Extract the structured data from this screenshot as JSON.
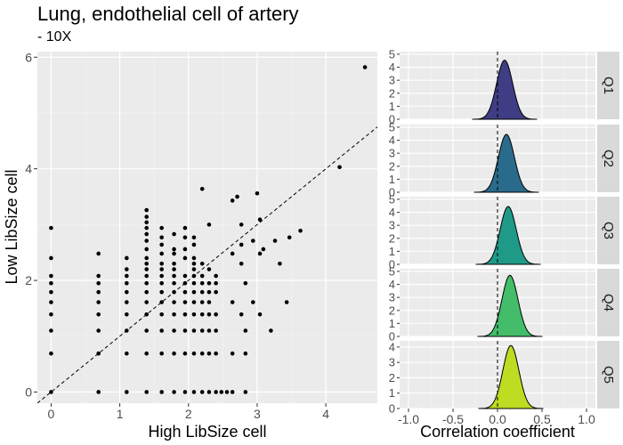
{
  "chart_data": [
    {
      "type": "scatter",
      "title": "Lung, endothelial cell of artery",
      "subtitle": "- 10X",
      "xlabel": "High LibSize cell",
      "ylabel": "Low LibSize cell",
      "xlim": [
        -0.2,
        4.75
      ],
      "ylim": [
        -0.2,
        6.1
      ],
      "xticks": [
        0,
        1,
        2,
        3,
        4
      ],
      "yticks": [
        0,
        2,
        4,
        6
      ],
      "grid": true,
      "reference_line": {
        "slope": 1,
        "intercept": 0,
        "style": "dashed"
      },
      "points": [
        [
          0,
          0
        ],
        [
          0,
          0.69
        ],
        [
          0,
          1.1
        ],
        [
          0,
          1.39
        ],
        [
          0,
          1.61
        ],
        [
          0,
          1.79
        ],
        [
          0,
          1.95
        ],
        [
          0,
          2.08
        ],
        [
          0,
          2.4
        ],
        [
          0,
          2.94
        ],
        [
          0.69,
          0
        ],
        [
          0.69,
          0.69
        ],
        [
          0.69,
          1.1
        ],
        [
          0.69,
          1.39
        ],
        [
          0.69,
          1.61
        ],
        [
          0.69,
          1.79
        ],
        [
          0.69,
          1.95
        ],
        [
          0.69,
          2.08
        ],
        [
          0.69,
          2.48
        ],
        [
          1.1,
          0
        ],
        [
          1.1,
          0.69
        ],
        [
          1.1,
          1.1
        ],
        [
          1.1,
          1.39
        ],
        [
          1.1,
          1.61
        ],
        [
          1.1,
          1.79
        ],
        [
          1.1,
          1.95
        ],
        [
          1.1,
          2.08
        ],
        [
          1.1,
          2.2
        ],
        [
          1.1,
          2.4
        ],
        [
          1.39,
          0
        ],
        [
          1.39,
          0.69
        ],
        [
          1.39,
          1.1
        ],
        [
          1.39,
          1.39
        ],
        [
          1.39,
          1.61
        ],
        [
          1.39,
          1.79
        ],
        [
          1.39,
          1.95
        ],
        [
          1.39,
          2.08
        ],
        [
          1.39,
          2.2
        ],
        [
          1.39,
          2.3
        ],
        [
          1.39,
          2.4
        ],
        [
          1.39,
          2.56
        ],
        [
          1.39,
          2.71
        ],
        [
          1.39,
          2.83
        ],
        [
          1.39,
          2.94
        ],
        [
          1.39,
          3.04
        ],
        [
          1.39,
          3.14
        ],
        [
          1.39,
          3.26
        ],
        [
          1.61,
          0
        ],
        [
          1.61,
          0.69
        ],
        [
          1.61,
          1.1
        ],
        [
          1.61,
          1.39
        ],
        [
          1.61,
          1.61
        ],
        [
          1.61,
          1.79
        ],
        [
          1.61,
          1.95
        ],
        [
          1.61,
          2.08
        ],
        [
          1.61,
          2.2
        ],
        [
          1.61,
          2.3
        ],
        [
          1.61,
          2.48
        ],
        [
          1.61,
          2.64
        ],
        [
          1.61,
          2.77
        ],
        [
          1.61,
          2.94
        ],
        [
          1.79,
          0
        ],
        [
          1.79,
          0.69
        ],
        [
          1.79,
          1.1
        ],
        [
          1.79,
          1.39
        ],
        [
          1.79,
          1.61
        ],
        [
          1.79,
          1.79
        ],
        [
          1.79,
          1.95
        ],
        [
          1.79,
          2.08
        ],
        [
          1.79,
          2.2
        ],
        [
          1.79,
          2.3
        ],
        [
          1.79,
          2.48
        ],
        [
          1.79,
          2.56
        ],
        [
          1.79,
          2.83
        ],
        [
          1.95,
          0
        ],
        [
          1.95,
          0.69
        ],
        [
          1.95,
          1.1
        ],
        [
          1.95,
          1.39
        ],
        [
          1.95,
          1.61
        ],
        [
          1.95,
          1.79
        ],
        [
          1.95,
          1.95
        ],
        [
          1.95,
          2.08
        ],
        [
          1.95,
          2.4
        ],
        [
          1.95,
          2.56
        ],
        [
          1.95,
          2.77
        ],
        [
          1.95,
          2.94
        ],
        [
          2.08,
          0
        ],
        [
          2.08,
          0.69
        ],
        [
          2.08,
          1.1
        ],
        [
          2.08,
          1.39
        ],
        [
          2.08,
          1.61
        ],
        [
          2.08,
          1.79
        ],
        [
          2.08,
          1.95
        ],
        [
          2.08,
          2.08
        ],
        [
          2.08,
          2.2
        ],
        [
          2.08,
          2.3
        ],
        [
          2.08,
          2.4
        ],
        [
          2.08,
          2.64
        ],
        [
          2.08,
          2.77
        ],
        [
          2.2,
          0
        ],
        [
          2.2,
          0.69
        ],
        [
          2.2,
          1.1
        ],
        [
          2.2,
          1.39
        ],
        [
          2.2,
          1.61
        ],
        [
          2.2,
          1.79
        ],
        [
          2.2,
          1.95
        ],
        [
          2.2,
          2.08
        ],
        [
          2.2,
          2.3
        ],
        [
          2.2,
          3.64
        ],
        [
          2.3,
          0
        ],
        [
          2.3,
          0.69
        ],
        [
          2.3,
          1.1
        ],
        [
          2.3,
          1.39
        ],
        [
          2.3,
          1.61
        ],
        [
          2.3,
          1.79
        ],
        [
          2.3,
          1.95
        ],
        [
          2.3,
          2.2
        ],
        [
          2.3,
          3.0
        ],
        [
          2.4,
          0
        ],
        [
          2.4,
          0.69
        ],
        [
          2.4,
          1.1
        ],
        [
          2.4,
          1.39
        ],
        [
          2.4,
          1.79
        ],
        [
          2.4,
          1.95
        ],
        [
          2.4,
          2.08
        ],
        [
          2.48,
          0
        ],
        [
          2.56,
          0
        ],
        [
          2.64,
          0
        ],
        [
          2.83,
          0
        ],
        [
          2.64,
          0.69
        ],
        [
          2.64,
          1.61
        ],
        [
          2.64,
          2.48
        ],
        [
          2.64,
          3.43
        ],
        [
          2.71,
          3.5
        ],
        [
          2.77,
          1.39
        ],
        [
          2.77,
          2.3
        ],
        [
          2.77,
          2.64
        ],
        [
          2.77,
          3.0
        ],
        [
          2.83,
          0.69
        ],
        [
          2.83,
          1.1
        ],
        [
          2.83,
          1.95
        ],
        [
          2.94,
          1.61
        ],
        [
          2.94,
          2.71
        ],
        [
          3.0,
          3.56
        ],
        [
          3.04,
          1.39
        ],
        [
          3.04,
          2.48
        ],
        [
          3.04,
          3.09
        ],
        [
          3.09,
          2.56
        ],
        [
          3.2,
          1.1
        ],
        [
          3.26,
          2.71
        ],
        [
          3.33,
          2.3
        ],
        [
          3.43,
          1.61
        ],
        [
          3.47,
          2.77
        ],
        [
          3.63,
          2.89
        ],
        [
          4.2,
          4.03
        ],
        [
          4.57,
          5.82
        ]
      ]
    },
    {
      "type": "density",
      "xlabel": "Correlation coefficient",
      "xlim": [
        -1.1,
        1.1
      ],
      "xticks": [
        -1.0,
        -0.5,
        0.0,
        0.5,
        1.0
      ],
      "xtick_labels": [
        "-1.0",
        "-0.5",
        "0.0",
        "0.5",
        "1.0"
      ],
      "yticks": [
        0,
        1,
        2,
        3,
        4,
        5
      ],
      "reference_line": {
        "x": 0,
        "style": "dashed"
      },
      "panels": [
        {
          "label": "Q1",
          "color": "#3f3d84",
          "ylim": [
            0,
            5.2
          ],
          "mean": 0.08,
          "sd": 0.09,
          "peak": 4.55
        },
        {
          "label": "Q2",
          "color": "#2a6b8c",
          "ylim": [
            0,
            5.2
          ],
          "mean": 0.1,
          "sd": 0.09,
          "peak": 4.45
        },
        {
          "label": "Q3",
          "color": "#1f9a89",
          "ylim": [
            0,
            5.2
          ],
          "mean": 0.12,
          "sd": 0.09,
          "peak": 4.45
        },
        {
          "label": "Q4",
          "color": "#43bd6a",
          "ylim": [
            0,
            5.2
          ],
          "mean": 0.14,
          "sd": 0.09,
          "peak": 4.7
        },
        {
          "label": "Q5",
          "color": "#bddc22",
          "ylim": [
            0,
            4.4
          ],
          "mean": 0.15,
          "sd": 0.09,
          "peak": 4.1
        }
      ]
    }
  ]
}
